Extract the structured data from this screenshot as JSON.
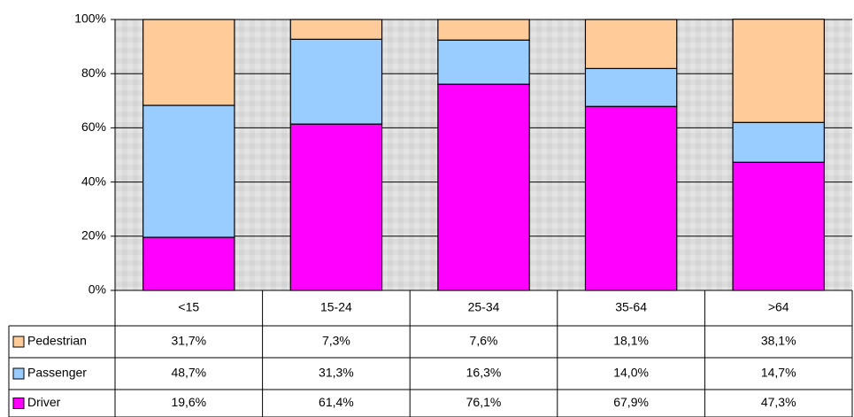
{
  "chart_data": {
    "type": "bar",
    "stacked": true,
    "categories": [
      "<15",
      "15-24",
      "25-34",
      "35-64",
      ">64"
    ],
    "series": [
      {
        "name": "Pedestrian",
        "color": "#FFCC99",
        "values": [
          31.7,
          7.3,
          7.6,
          18.1,
          38.1
        ],
        "value_labels": [
          "31,7%",
          "7,3%",
          "7,6%",
          "18,1%",
          "38,1%"
        ]
      },
      {
        "name": "Passenger",
        "color": "#99CCFF",
        "values": [
          48.7,
          31.3,
          16.3,
          14.0,
          14.7
        ],
        "value_labels": [
          "48,7%",
          "31,3%",
          "16,3%",
          "14,0%",
          "14,7%"
        ]
      },
      {
        "name": "Driver",
        "color": "#FF00FF",
        "values": [
          19.6,
          61.4,
          76.1,
          67.9,
          47.3
        ],
        "value_labels": [
          "19,6%",
          "61,4%",
          "76,1%",
          "67,9%",
          "47,3%"
        ]
      }
    ],
    "ylim": [
      0,
      100
    ],
    "yticks": [
      {
        "value": 0,
        "label": "0%"
      },
      {
        "value": 20,
        "label": "20%"
      },
      {
        "value": 40,
        "label": "40%"
      },
      {
        "value": 60,
        "label": "60%"
      },
      {
        "value": 80,
        "label": "80%"
      },
      {
        "value": 100,
        "label": "100%"
      }
    ],
    "grid": true
  }
}
